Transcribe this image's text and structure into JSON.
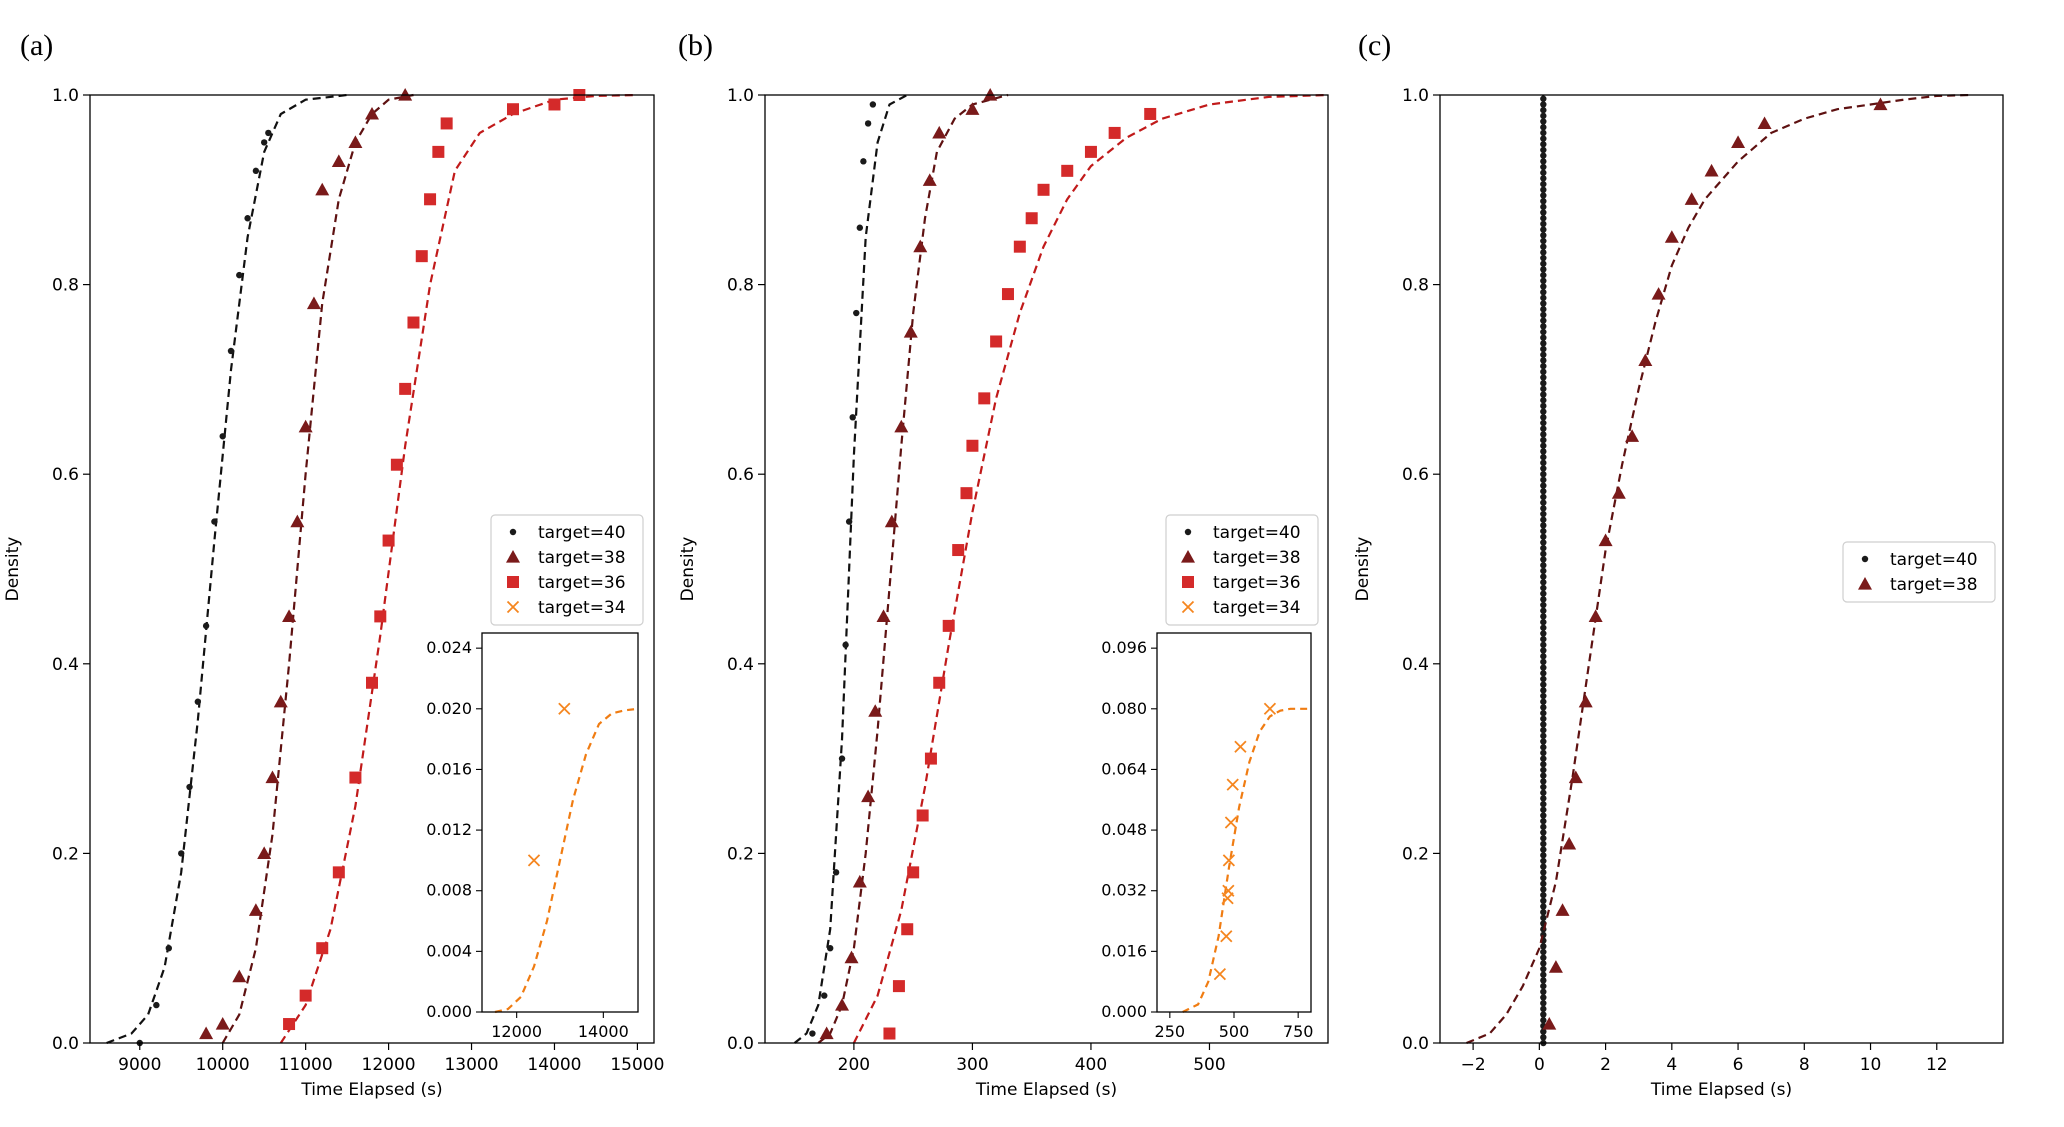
{
  "colors": {
    "target40": "#1a1a1a",
    "target38": "#7a1a1a",
    "target36": "#d42a2a",
    "target34": "#f5861f",
    "fit40": "#111111",
    "fit38": "#5e1111",
    "fit36": "#c11a1a",
    "fit34": "#f07c12"
  },
  "chart_data": [
    {
      "panel_label": "(a)",
      "type": "scatter",
      "title": "",
      "xlabel": "Time Elapsed (s)",
      "ylabel": "Density",
      "xlim": [
        8400,
        15200
      ],
      "ylim": [
        0,
        1
      ],
      "xticks": [
        9000,
        10000,
        11000,
        12000,
        13000,
        14000,
        15000
      ],
      "yticks": [
        0.0,
        0.2,
        0.4,
        0.6,
        0.8,
        1.0
      ],
      "xtick_labels": [
        "9000",
        "10000",
        "11000",
        "12000",
        "13000",
        "14000",
        "15000"
      ],
      "ytick_labels": [
        "0.0",
        "0.2",
        "0.4",
        "0.6",
        "0.8",
        "1.0"
      ],
      "legend": [
        "target=40",
        "target=38",
        "target=36",
        "target=34"
      ],
      "legend_position": "center-right",
      "series": [
        {
          "name": "target=40",
          "marker": "dot",
          "color_key": "target40",
          "fit_color_key": "fit40",
          "x": [
            9000,
            9200,
            9350,
            9500,
            9600,
            9700,
            9800,
            9900,
            10000,
            10100,
            10200,
            10300,
            10400,
            10500,
            10550
          ],
          "y": [
            0.0,
            0.04,
            0.1,
            0.2,
            0.27,
            0.36,
            0.44,
            0.55,
            0.64,
            0.73,
            0.81,
            0.87,
            0.92,
            0.95,
            0.96
          ],
          "fit_x": [
            8600,
            8900,
            9100,
            9300,
            9500,
            9700,
            9900,
            10100,
            10300,
            10500,
            10700,
            11000,
            11500
          ],
          "fit_y": [
            0.0,
            0.01,
            0.03,
            0.08,
            0.18,
            0.34,
            0.53,
            0.71,
            0.85,
            0.94,
            0.98,
            0.995,
            1.0
          ]
        },
        {
          "name": "target=38",
          "marker": "triangle",
          "color_key": "target38",
          "fit_color_key": "fit38",
          "x": [
            9800,
            10000,
            10200,
            10400,
            10500,
            10600,
            10700,
            10800,
            10900,
            11000,
            11100,
            11200,
            11400,
            11600,
            11800,
            12200
          ],
          "y": [
            0.01,
            0.02,
            0.07,
            0.14,
            0.2,
            0.28,
            0.36,
            0.45,
            0.55,
            0.65,
            0.78,
            0.9,
            0.93,
            0.95,
            0.98,
            1.0
          ],
          "fit_x": [
            10000,
            10200,
            10400,
            10600,
            10800,
            11000,
            11200,
            11400,
            11600,
            11800,
            12000,
            12300
          ],
          "fit_y": [
            0.0,
            0.03,
            0.1,
            0.22,
            0.4,
            0.6,
            0.78,
            0.89,
            0.95,
            0.98,
            0.995,
            1.0
          ]
        },
        {
          "name": "target=36",
          "marker": "square",
          "color_key": "target36",
          "fit_color_key": "fit36",
          "x": [
            10800,
            11000,
            11200,
            11400,
            11600,
            11800,
            11900,
            12000,
            12100,
            12200,
            12300,
            12400,
            12500,
            12600,
            12700,
            13500,
            14000,
            14300
          ],
          "y": [
            0.02,
            0.05,
            0.1,
            0.18,
            0.28,
            0.38,
            0.45,
            0.53,
            0.61,
            0.69,
            0.76,
            0.83,
            0.89,
            0.94,
            0.97,
            0.985,
            0.99,
            1.0
          ],
          "fit_x": [
            10700,
            11000,
            11300,
            11600,
            11900,
            12200,
            12500,
            12800,
            13100,
            13500,
            14000,
            14500,
            15000
          ],
          "fit_y": [
            0.0,
            0.04,
            0.12,
            0.25,
            0.43,
            0.63,
            0.8,
            0.92,
            0.96,
            0.98,
            0.995,
            0.999,
            1.0
          ]
        }
      ],
      "inset": {
        "xlim": [
          11200,
          14800
        ],
        "ylim": [
          0,
          0.025
        ],
        "xticks": [
          12000,
          14000
        ],
        "xtick_labels": [
          "12000",
          "14000"
        ],
        "yticks": [
          0.0,
          0.004,
          0.008,
          0.012,
          0.016,
          0.02,
          0.024
        ],
        "ytick_labels": [
          "0.000",
          "0.004",
          "0.008",
          "0.012",
          "0.016",
          "0.020",
          "0.024"
        ],
        "series": {
          "name": "target=34",
          "marker": "x",
          "color_key": "target34",
          "fit_color_key": "fit34",
          "x": [
            12400,
            13100
          ],
          "y": [
            0.01,
            0.02
          ],
          "fit_x": [
            11500,
            11800,
            12100,
            12400,
            12700,
            13000,
            13300,
            13600,
            13900,
            14200,
            14500,
            14800
          ],
          "fit_y": [
            0.0,
            0.0002,
            0.001,
            0.003,
            0.006,
            0.01,
            0.014,
            0.017,
            0.019,
            0.0197,
            0.0199,
            0.02
          ]
        }
      }
    },
    {
      "panel_label": "(b)",
      "type": "scatter",
      "title": "",
      "xlabel": "Time Elapsed (s)",
      "ylabel": "Density",
      "xlim": [
        125,
        600
      ],
      "ylim": [
        0,
        1
      ],
      "xticks": [
        200,
        300,
        400,
        500
      ],
      "yticks": [
        0.0,
        0.2,
        0.4,
        0.6,
        0.8,
        1.0
      ],
      "xtick_labels": [
        "200",
        "300",
        "400",
        "500"
      ],
      "ytick_labels": [
        "0.0",
        "0.2",
        "0.4",
        "0.6",
        "0.8",
        "1.0"
      ],
      "legend": [
        "target=40",
        "target=38",
        "target=36",
        "target=34"
      ],
      "legend_position": "center-right",
      "series": [
        {
          "name": "target=40",
          "marker": "dot",
          "color_key": "target40",
          "fit_color_key": "fit40",
          "x": [
            165,
            175,
            180,
            185,
            190,
            193,
            196,
            199,
            202,
            205,
            208,
            212,
            216
          ],
          "y": [
            0.01,
            0.05,
            0.1,
            0.18,
            0.3,
            0.42,
            0.55,
            0.66,
            0.77,
            0.86,
            0.93,
            0.97,
            0.99
          ],
          "fit_x": [
            150,
            160,
            170,
            180,
            190,
            200,
            210,
            220,
            230,
            245
          ],
          "fit_y": [
            0.0,
            0.01,
            0.04,
            0.12,
            0.32,
            0.62,
            0.85,
            0.95,
            0.99,
            1.0
          ]
        },
        {
          "name": "target=38",
          "marker": "triangle",
          "color_key": "target38",
          "fit_color_key": "fit38",
          "x": [
            177,
            190,
            198,
            205,
            212,
            218,
            225,
            232,
            240,
            248,
            256,
            264,
            272,
            300,
            315
          ],
          "y": [
            0.01,
            0.04,
            0.09,
            0.17,
            0.26,
            0.35,
            0.45,
            0.55,
            0.65,
            0.75,
            0.84,
            0.91,
            0.96,
            0.985,
            1.0
          ],
          "fit_x": [
            170,
            180,
            190,
            200,
            210,
            220,
            230,
            240,
            250,
            260,
            270,
            285,
            300,
            330
          ],
          "fit_y": [
            0.0,
            0.01,
            0.04,
            0.1,
            0.2,
            0.33,
            0.48,
            0.63,
            0.77,
            0.87,
            0.94,
            0.975,
            0.99,
            1.0
          ]
        },
        {
          "name": "target=36",
          "marker": "square",
          "color_key": "target36",
          "fit_color_key": "fit36",
          "x": [
            230,
            238,
            245,
            250,
            258,
            265,
            272,
            280,
            288,
            295,
            300,
            310,
            320,
            330,
            340,
            350,
            360,
            380,
            400,
            420,
            450
          ],
          "y": [
            0.01,
            0.06,
            0.12,
            0.18,
            0.24,
            0.3,
            0.38,
            0.44,
            0.52,
            0.58,
            0.63,
            0.68,
            0.74,
            0.79,
            0.84,
            0.87,
            0.9,
            0.92,
            0.94,
            0.96,
            0.98
          ],
          "fit_x": [
            200,
            220,
            240,
            260,
            280,
            300,
            320,
            340,
            360,
            380,
            400,
            430,
            460,
            500,
            550,
            600
          ],
          "fit_y": [
            0.0,
            0.05,
            0.14,
            0.27,
            0.42,
            0.56,
            0.68,
            0.77,
            0.84,
            0.89,
            0.925,
            0.955,
            0.975,
            0.99,
            0.998,
            1.0
          ]
        }
      ],
      "inset": {
        "xlim": [
          200,
          800
        ],
        "ylim": [
          0,
          0.1
        ],
        "xticks": [
          250,
          500,
          750
        ],
        "xtick_labels": [
          "250",
          "500",
          "750"
        ],
        "yticks": [
          0.0,
          0.016,
          0.032,
          0.048,
          0.064,
          0.08,
          0.096
        ],
        "ytick_labels": [
          "0.000",
          "0.016",
          "0.032",
          "0.048",
          "0.064",
          "0.080",
          "0.096"
        ],
        "series": {
          "name": "target=34",
          "marker": "x",
          "color_key": "target34",
          "fit_color_key": "fit34",
          "x": [
            445,
            470,
            475,
            478,
            480,
            488,
            495,
            525,
            640
          ],
          "y": [
            0.01,
            0.02,
            0.03,
            0.032,
            0.04,
            0.05,
            0.06,
            0.07,
            0.08
          ],
          "fit_x": [
            300,
            360,
            400,
            440,
            480,
            520,
            560,
            600,
            640,
            680,
            720,
            760,
            800
          ],
          "fit_y": [
            0.0,
            0.002,
            0.008,
            0.02,
            0.038,
            0.054,
            0.066,
            0.074,
            0.078,
            0.0795,
            0.08,
            0.08,
            0.08
          ]
        }
      }
    },
    {
      "panel_label": "(c)",
      "type": "scatter",
      "title": "",
      "xlabel": "Time Elapsed (s)",
      "ylabel": "Density",
      "xlim": [
        -3,
        14
      ],
      "ylim": [
        0,
        1
      ],
      "xticks": [
        -2,
        0,
        2,
        4,
        6,
        8,
        10,
        12
      ],
      "yticks": [
        0.0,
        0.2,
        0.4,
        0.6,
        0.8,
        1.0
      ],
      "xtick_labels": [
        "−2",
        "0",
        "2",
        "4",
        "6",
        "8",
        "10",
        "12"
      ],
      "ytick_labels": [
        "0.0",
        "0.2",
        "0.4",
        "0.6",
        "0.8",
        "1.0"
      ],
      "legend": [
        "target=40",
        "target=38"
      ],
      "legend_position": "center-right",
      "series": [
        {
          "name": "target=40",
          "marker": "dot",
          "color_key": "target40",
          "fit_color_key": "fit40",
          "x": [
            0.12,
            0.12,
            0.12,
            0.12,
            0.12,
            0.12,
            0.12,
            0.12,
            0.12,
            0.12,
            0.12
          ],
          "y": [
            0.0,
            0.1,
            0.2,
            0.3,
            0.4,
            0.5,
            0.6,
            0.7,
            0.8,
            0.9,
            1.0
          ],
          "fit_x": [
            0.12,
            0.12
          ],
          "fit_y": [
            0.0,
            1.0
          ]
        },
        {
          "name": "target=38",
          "marker": "triangle",
          "color_key": "target38",
          "fit_color_key": "fit38",
          "x": [
            0.3,
            0.5,
            0.7,
            0.9,
            1.1,
            1.4,
            1.7,
            2.0,
            2.4,
            2.8,
            3.2,
            3.6,
            4.0,
            4.6,
            5.2,
            6.0,
            6.8,
            10.3
          ],
          "y": [
            0.02,
            0.08,
            0.14,
            0.21,
            0.28,
            0.36,
            0.45,
            0.53,
            0.58,
            0.64,
            0.72,
            0.79,
            0.85,
            0.89,
            0.92,
            0.95,
            0.97,
            0.99
          ],
          "fit_x": [
            -2.2,
            -1.5,
            -1.0,
            -0.5,
            0.0,
            0.5,
            1.0,
            1.5,
            2.0,
            2.5,
            3.0,
            3.5,
            4.0,
            4.5,
            5.0,
            6.0,
            7.0,
            8.0,
            9.0,
            10.0,
            11.0,
            12.0,
            13.0
          ],
          "fit_y": [
            0.0,
            0.01,
            0.03,
            0.06,
            0.1,
            0.17,
            0.28,
            0.4,
            0.52,
            0.61,
            0.69,
            0.76,
            0.82,
            0.86,
            0.89,
            0.93,
            0.96,
            0.975,
            0.985,
            0.99,
            0.995,
            0.999,
            1.0
          ]
        }
      ]
    }
  ]
}
